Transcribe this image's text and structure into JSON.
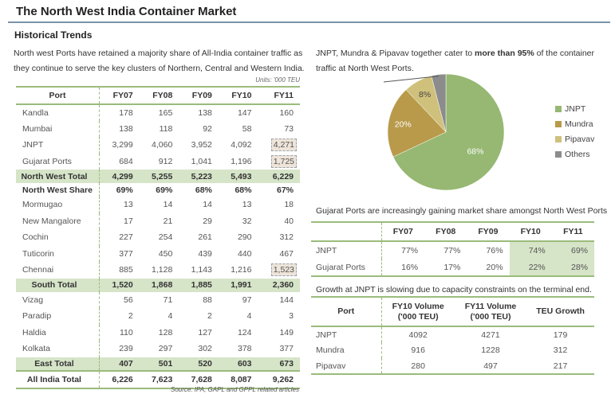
{
  "header": {
    "title": "The North West India Container Market",
    "subtitle": "Historical Trends"
  },
  "left_text": "North west Ports have retained a majority share of All-India container traffic as they continue to serve the key clusters of Northern, Central and Western India.",
  "right_text": {
    "before": "JNPT, Mundra & Pipavav together cater to ",
    "bold": "more than 95%",
    "after": " of the container traffic at North West Ports."
  },
  "units": "Units: '000 TEU",
  "main_table": {
    "headers": [
      "Port",
      "FY07",
      "FY08",
      "FY09",
      "FY10",
      "FY11"
    ],
    "rows": [
      {
        "type": "normal",
        "cells": [
          "Kandla",
          "178",
          "165",
          "138",
          "147",
          "160"
        ]
      },
      {
        "type": "normal",
        "cells": [
          "Mumbai",
          "138",
          "118",
          "92",
          "58",
          "73"
        ]
      },
      {
        "type": "normal",
        "cells": [
          "JNPT",
          "3,299",
          "4,060",
          "3,952",
          "4,092",
          "4,271"
        ],
        "highlight_last": true
      },
      {
        "type": "normal",
        "cells": [
          "Gujarat Ports",
          "684",
          "912",
          "1,041",
          "1,196",
          "1,725"
        ],
        "highlight_last": true
      },
      {
        "type": "tot",
        "cells": [
          "North West Total",
          "4,299",
          "5,255",
          "5,223",
          "5,493",
          "6,229"
        ]
      },
      {
        "type": "share",
        "cells": [
          "North West Share",
          "69%",
          "69%",
          "68%",
          "68%",
          "67%"
        ]
      },
      {
        "type": "normal",
        "cells": [
          "Mormugao",
          "13",
          "14",
          "14",
          "13",
          "18"
        ]
      },
      {
        "type": "normal",
        "cells": [
          "New Mangalore",
          "17",
          "21",
          "29",
          "32",
          "40"
        ]
      },
      {
        "type": "normal",
        "cells": [
          "Cochin",
          "227",
          "254",
          "261",
          "290",
          "312"
        ]
      },
      {
        "type": "normal",
        "cells": [
          "Tuticorin",
          "377",
          "450",
          "439",
          "440",
          "467"
        ]
      },
      {
        "type": "normal",
        "cells": [
          "Chennai",
          "885",
          "1,128",
          "1,143",
          "1,216",
          "1,523"
        ],
        "highlight_last": true
      },
      {
        "type": "tot",
        "cells": [
          "South Total",
          "1,520",
          "1,868",
          "1,885",
          "1,991",
          "2,360"
        ]
      },
      {
        "type": "normal",
        "cells": [
          "Vizag",
          "56",
          "71",
          "88",
          "97",
          "144"
        ]
      },
      {
        "type": "normal",
        "cells": [
          "Paradip",
          "2",
          "4",
          "2",
          "4",
          "3"
        ]
      },
      {
        "type": "normal",
        "cells": [
          "Haldia",
          "110",
          "128",
          "127",
          "124",
          "149"
        ]
      },
      {
        "type": "normal",
        "cells": [
          "Kolkata",
          "239",
          "297",
          "302",
          "378",
          "377"
        ]
      },
      {
        "type": "tot",
        "cells": [
          "East Total",
          "407",
          "501",
          "520",
          "603",
          "673"
        ]
      },
      {
        "type": "all",
        "cells": [
          "All India Total",
          "6,226",
          "7,623",
          "7,628",
          "8,087",
          "9,262"
        ]
      }
    ]
  },
  "source": "Source: IPA, GAPL and GPPL related articles",
  "chart_data": {
    "type": "pie",
    "slices": [
      {
        "name": "JNPT",
        "value": 68,
        "label": "68%",
        "color": "#96b872"
      },
      {
        "name": "Mundra",
        "value": 20,
        "label": "20%",
        "color": "#b89a4a"
      },
      {
        "name": "Pipavav",
        "value": 8,
        "label": "8%",
        "color": "#cfc07c"
      },
      {
        "name": "Others",
        "value": 4,
        "label": "",
        "color": "#8c8c8c"
      }
    ],
    "legend_position": "right"
  },
  "share_table": {
    "caption": "Gujarat Ports are increasingly gaining market share amongst North West Ports",
    "headers": [
      "",
      "FY07",
      "FY08",
      "FY09",
      "FY10",
      "FY11"
    ],
    "rows": [
      [
        "JNPT",
        "77%",
        "77%",
        "76%",
        "74%",
        "69%"
      ],
      [
        "Gujarat Ports",
        "16%",
        "17%",
        "20%",
        "22%",
        "28%"
      ]
    ]
  },
  "growth_table": {
    "caption": "Growth at JNPT is slowing due to capacity constraints on the terminal end.",
    "headers": [
      [
        "Port",
        ""
      ],
      [
        "FY10 Volume",
        "('000 TEU)"
      ],
      [
        "FY11 Volume",
        "('000 TEU)"
      ],
      [
        "TEU Growth",
        ""
      ]
    ],
    "rows": [
      [
        "JNPT",
        "4092",
        "4271",
        "179"
      ],
      [
        "Mundra",
        "916",
        "1228",
        "312"
      ],
      [
        "Pipavav",
        "280",
        "497",
        "217"
      ]
    ]
  }
}
